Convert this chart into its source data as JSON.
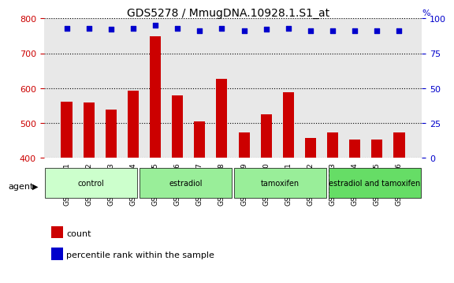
{
  "title": "GDS5278 / MmugDNA.10928.1.S1_at",
  "samples": [
    "GSM362921",
    "GSM362922",
    "GSM362923",
    "GSM362924",
    "GSM362925",
    "GSM362926",
    "GSM362927",
    "GSM362928",
    "GSM362929",
    "GSM362930",
    "GSM362931",
    "GSM362932",
    "GSM362933",
    "GSM362934",
    "GSM362935",
    "GSM362936"
  ],
  "counts": [
    562,
    558,
    538,
    592,
    748,
    580,
    505,
    627,
    472,
    525,
    589,
    457,
    474,
    452,
    452,
    472
  ],
  "percentiles": [
    93,
    93,
    92,
    93,
    95,
    93,
    91,
    93,
    91,
    92,
    93,
    91,
    91,
    91,
    91,
    91
  ],
  "bar_color": "#cc0000",
  "dot_color": "#0000cc",
  "ylim_left": [
    400,
    800
  ],
  "ylim_right": [
    0,
    100
  ],
  "yticks_left": [
    400,
    500,
    600,
    700,
    800
  ],
  "yticks_right": [
    0,
    25,
    50,
    75,
    100
  ],
  "groups": [
    {
      "label": "control",
      "start": 0,
      "end": 4,
      "color": "#ccffcc"
    },
    {
      "label": "estradiol",
      "start": 4,
      "end": 8,
      "color": "#99ee99"
    },
    {
      "label": "tamoxifen",
      "start": 8,
      "end": 12,
      "color": "#99ee99"
    },
    {
      "label": "estradiol and tamoxifen",
      "start": 12,
      "end": 16,
      "color": "#66dd66"
    }
  ],
  "xlabel": "agent",
  "legend_count_color": "#cc0000",
  "legend_dot_color": "#0000cc",
  "background_color": "#ffffff",
  "plot_bg_color": "#e8e8e8"
}
